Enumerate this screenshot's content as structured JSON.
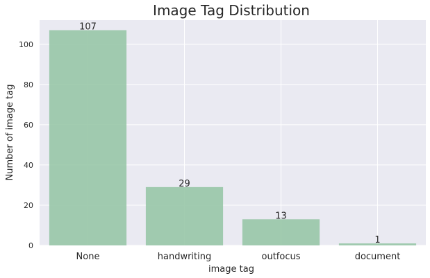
{
  "chart_data": {
    "type": "bar",
    "title": "Image Tag Distribution",
    "xlabel": "image tag",
    "ylabel": "Number of image tag",
    "categories": [
      "None",
      "handwriting",
      "outfocus",
      "document"
    ],
    "values": [
      107,
      29,
      13,
      1
    ],
    "data_labels": [
      "107",
      "29",
      "13",
      "1"
    ],
    "yticks": [
      0,
      20,
      40,
      60,
      80,
      100
    ],
    "ylim": [
      0,
      112
    ],
    "grid": true,
    "legend": "none"
  },
  "colors": {
    "bar": "#98c7a7",
    "plot_bg": "#eaeaf2",
    "grid": "#ffffff",
    "text": "#262626"
  }
}
